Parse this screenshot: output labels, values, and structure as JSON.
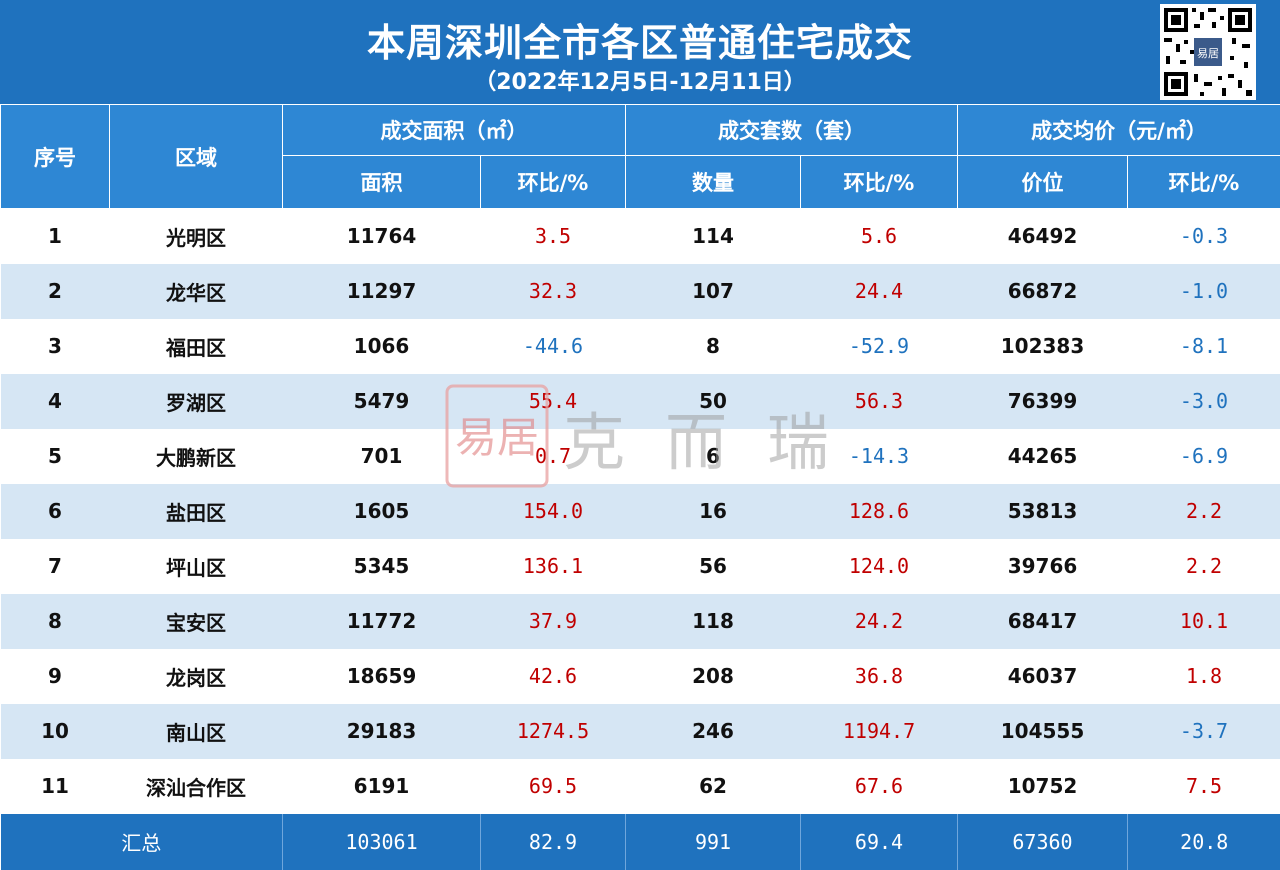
{
  "title": "本周深圳全市各区普通住宅成交",
  "subtitle": "（2022年12月5日-12月11日）",
  "headers": {
    "index": "序号",
    "district": "区域",
    "area_group": "成交面积（㎡）",
    "units_group": "成交套数（套）",
    "price_group": "成交均价（元/㎡）",
    "area": "面积",
    "area_mom": "环比/%",
    "units": "数量",
    "units_mom": "环比/%",
    "price": "价位",
    "price_mom": "环比/%"
  },
  "rows": [
    {
      "index": "1",
      "district": "光明区",
      "area": "11764",
      "area_mom": "3.5",
      "units": "114",
      "units_mom": "5.6",
      "price": "46492",
      "price_mom": "-0.3"
    },
    {
      "index": "2",
      "district": "龙华区",
      "area": "11297",
      "area_mom": "32.3",
      "units": "107",
      "units_mom": "24.4",
      "price": "66872",
      "price_mom": "-1.0"
    },
    {
      "index": "3",
      "district": "福田区",
      "area": "1066",
      "area_mom": "-44.6",
      "units": "8",
      "units_mom": "-52.9",
      "price": "102383",
      "price_mom": "-8.1"
    },
    {
      "index": "4",
      "district": "罗湖区",
      "area": "5479",
      "area_mom": "55.4",
      "units": "50",
      "units_mom": "56.3",
      "price": "76399",
      "price_mom": "-3.0"
    },
    {
      "index": "5",
      "district": "大鹏新区",
      "area": "701",
      "area_mom": "0.7",
      "units": "6",
      "units_mom": "-14.3",
      "price": "44265",
      "price_mom": "-6.9"
    },
    {
      "index": "6",
      "district": "盐田区",
      "area": "1605",
      "area_mom": "154.0",
      "units": "16",
      "units_mom": "128.6",
      "price": "53813",
      "price_mom": "2.2"
    },
    {
      "index": "7",
      "district": "坪山区",
      "area": "5345",
      "area_mom": "136.1",
      "units": "56",
      "units_mom": "124.0",
      "price": "39766",
      "price_mom": "2.2"
    },
    {
      "index": "8",
      "district": "宝安区",
      "area": "11772",
      "area_mom": "37.9",
      "units": "118",
      "units_mom": "24.2",
      "price": "68417",
      "price_mom": "10.1"
    },
    {
      "index": "9",
      "district": "龙岗区",
      "area": "18659",
      "area_mom": "42.6",
      "units": "208",
      "units_mom": "36.8",
      "price": "46037",
      "price_mom": "1.8"
    },
    {
      "index": "10",
      "district": "南山区",
      "area": "29183",
      "area_mom": "1274.5",
      "units": "246",
      "units_mom": "1194.7",
      "price": "104555",
      "price_mom": "-3.7"
    },
    {
      "index": "11",
      "district": "深汕合作区",
      "area": "6191",
      "area_mom": "69.5",
      "units": "62",
      "units_mom": "67.6",
      "price": "10752",
      "price_mom": "7.5"
    }
  ],
  "total": {
    "label": "汇总",
    "area": "103061",
    "area_mom": "82.9",
    "units": "991",
    "units_mom": "69.4",
    "price": "67360",
    "price_mom": "20.8"
  },
  "watermark": {
    "text": "克而瑞",
    "logo_glyph": "易居"
  },
  "colors": {
    "header_dark": "#1f72be",
    "header_light": "#2e87d4",
    "row_alt": "#d6e6f4",
    "positive": "#c00000",
    "negative": "#1f72be"
  }
}
